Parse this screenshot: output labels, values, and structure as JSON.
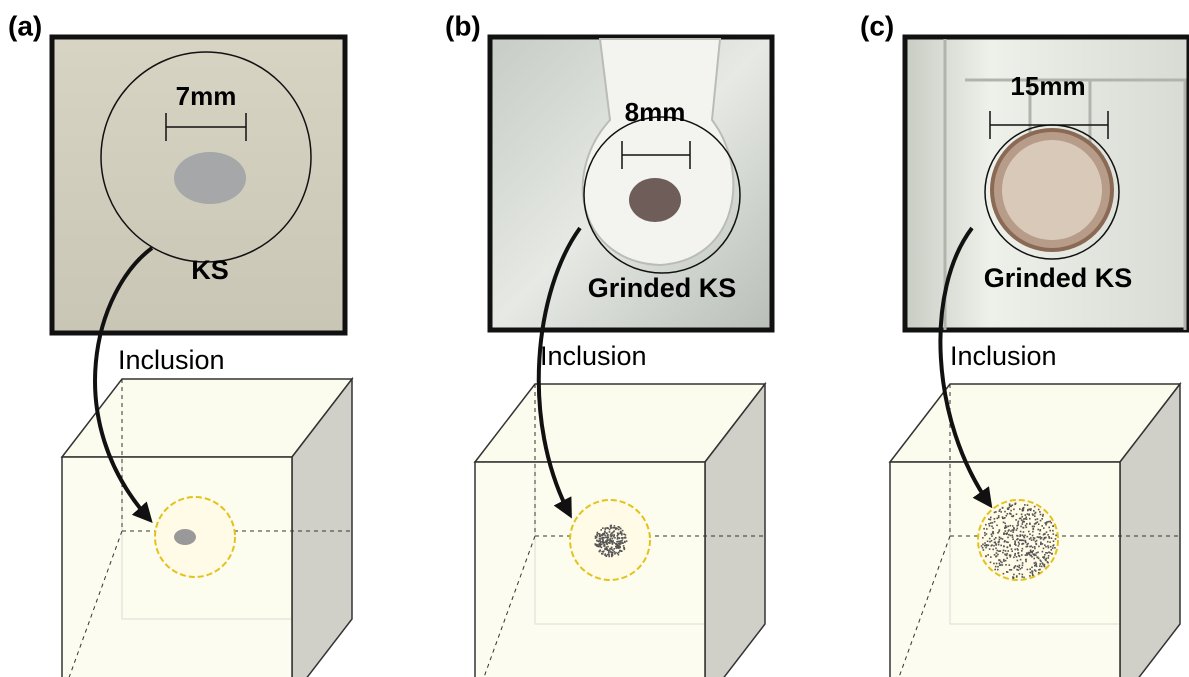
{
  "panels": [
    {
      "label": "(a)",
      "dimension": "7mm",
      "sample": "KS",
      "process": "Inclusion"
    },
    {
      "label": "(b)",
      "dimension": "8mm",
      "sample": "Grinded KS",
      "process": "Inclusion"
    },
    {
      "label": "(c)",
      "dimension": "15mm",
      "sample": "Grinded KS",
      "process": "Inclusion"
    }
  ]
}
